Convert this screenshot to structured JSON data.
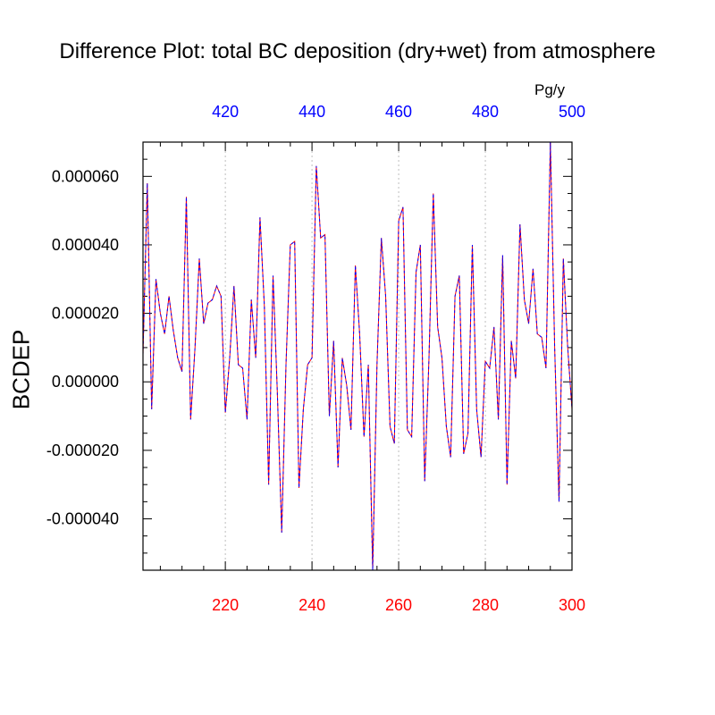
{
  "chart_data": {
    "type": "line",
    "title": "Difference Plot: total BC deposition (dry+wet) from atmosphere",
    "top_axis_unit": "Pg/y",
    "ylabel": "BCDEP",
    "xlim": [
      201,
      300
    ],
    "ylim": [
      -5.5e-05,
      7e-05
    ],
    "x_ticks": [
      220,
      240,
      260,
      280,
      300
    ],
    "x_tick_labels": [
      "220",
      "240",
      "260",
      "280",
      "300"
    ],
    "x_tick_color": "#ff0000",
    "top_ticks": [
      220,
      240,
      260,
      280,
      300
    ],
    "top_tick_labels": [
      "420",
      "440",
      "460",
      "480",
      "500"
    ],
    "top_tick_color": "#0000ff",
    "y_ticks": [
      -4e-05,
      -2e-05,
      0,
      2e-05,
      4e-05,
      6e-05
    ],
    "y_tick_labels": [
      "-0.000040",
      "-0.000020",
      "0.000000",
      "0.000020",
      "0.000040",
      "0.000060"
    ],
    "grid": "vertical dotted lines at x ticks",
    "series": [
      {
        "color_solid": "#ff0000",
        "color_dashed": "#0000ff",
        "x": [
          201,
          202,
          203,
          204,
          205,
          206,
          207,
          208,
          209,
          210,
          211,
          212,
          213,
          214,
          215,
          216,
          217,
          218,
          219,
          220,
          221,
          222,
          223,
          224,
          225,
          226,
          227,
          228,
          229,
          230,
          231,
          232,
          233,
          234,
          235,
          236,
          237,
          238,
          239,
          240,
          241,
          242,
          243,
          244,
          245,
          246,
          247,
          248,
          249,
          250,
          251,
          252,
          253,
          254,
          255,
          256,
          257,
          258,
          259,
          260,
          261,
          262,
          263,
          264,
          265,
          266,
          267,
          268,
          269,
          270,
          271,
          272,
          273,
          274,
          275,
          276,
          277,
          278,
          279,
          280,
          281,
          282,
          283,
          284,
          285,
          286,
          287,
          288,
          289,
          290,
          291,
          292,
          293,
          294,
          295,
          296,
          297,
          298,
          299,
          300
        ],
        "values": [
          8e-06,
          5.8e-05,
          -8e-06,
          3e-05,
          2e-05,
          1.4e-05,
          2.5e-05,
          1.5e-05,
          7e-06,
          3e-06,
          5.4e-05,
          -1.1e-05,
          1e-05,
          3.6e-05,
          1.7e-05,
          2.3e-05,
          2.4e-05,
          2.8e-05,
          2.5e-05,
          -9e-06,
          7e-06,
          2.8e-05,
          5e-06,
          4e-06,
          -1.1e-05,
          2.4e-05,
          7e-06,
          4.8e-05,
          2.2e-05,
          -3e-05,
          3.1e-05,
          -3e-06,
          -4.4e-05,
          5e-06,
          4e-05,
          4.1e-05,
          -3.1e-05,
          -8e-06,
          5e-06,
          7e-06,
          6.3e-05,
          4.2e-05,
          4.3e-05,
          -1e-05,
          1.2e-05,
          -2.5e-05,
          7e-06,
          -1e-06,
          -1.4e-05,
          3.4e-05,
          1.4e-05,
          -1.6e-05,
          5e-06,
          -5.5e-05,
          5e-06,
          4.2e-05,
          2.5e-05,
          -1.3e-05,
          -1.8e-05,
          4.7e-05,
          5.1e-05,
          -1.4e-05,
          -1.6e-05,
          3.2e-05,
          4e-05,
          -2.9e-05,
          7e-06,
          5.5e-05,
          1.6e-05,
          7e-06,
          -1.3e-05,
          -2.2e-05,
          2.5e-05,
          3.1e-05,
          -2.1e-05,
          -1.5e-05,
          4e-05,
          -8e-06,
          -2.2e-05,
          6e-06,
          4e-06,
          1.6e-05,
          -1.1e-05,
          3.7e-05,
          -3e-05,
          1.2e-05,
          1e-06,
          4.6e-05,
          2.4e-05,
          1.7e-05,
          3.3e-05,
          1.4e-05,
          1.3e-05,
          4e-06,
          7e-05,
          1e-05,
          -3.5e-05,
          3.6e-05,
          1e-05,
          -8e-06
        ]
      }
    ]
  }
}
